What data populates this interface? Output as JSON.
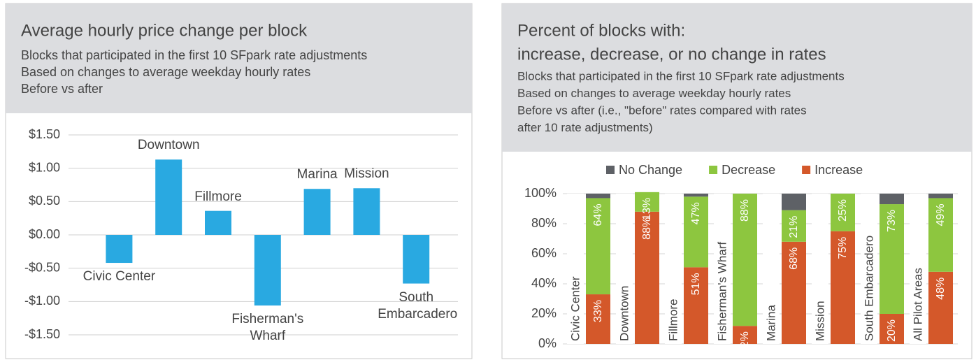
{
  "chart_data": [
    {
      "type": "bar",
      "title": "Average hourly price change per block",
      "subtitle": [
        "Blocks that participated in the first 10 SFpark rate adjustments",
        "Based on changes to average weekday hourly rates",
        "Before vs after"
      ],
      "categories": [
        "Civic Center",
        "Downtown",
        "Fillmore",
        "Fisherman's Wharf",
        "Marina",
        "Mission",
        "South Embarcadero"
      ],
      "values": [
        -0.42,
        1.13,
        0.36,
        -1.06,
        0.69,
        0.7,
        -0.73
      ],
      "color": "#29a9e1",
      "ylim": [
        -1.5,
        1.5
      ],
      "yticks": [
        {
          "value": -1.5,
          "label": "-$1.50"
        },
        {
          "value": -1.0,
          "label": "-$1.00"
        },
        {
          "value": -0.5,
          "label": "-$0.50"
        },
        {
          "value": 0,
          "label": "$0.00"
        },
        {
          "value": 0.5,
          "label": "$0.50"
        },
        {
          "value": 1.0,
          "label": "$1.00"
        },
        {
          "value": 1.5,
          "label": "$1.50"
        }
      ],
      "grid": true
    },
    {
      "type": "stacked_bar",
      "title": [
        "Percent of blocks with:",
        "increase, decrease, or no change in rates"
      ],
      "subtitle": [
        "Blocks that participated in the first 10 SFpark rate adjustments",
        "Based on changes to average weekday hourly rates",
        "Before vs after (i.e., \"before\" rates compared with rates",
        "after 10 rate adjustments)"
      ],
      "categories": [
        "Civic Center",
        "Downtown",
        "Fillmore",
        "Fisherman's Wharf",
        "Marina",
        "Mission",
        "South Embarcadero",
        "All Pilot Areas"
      ],
      "series": [
        {
          "name": "No Change",
          "color": "#5e6166",
          "values": [
            3,
            0,
            2,
            0,
            11,
            0,
            7,
            3
          ]
        },
        {
          "name": "Decrease",
          "color": "#8dc63f",
          "values": [
            64,
            13,
            47,
            88,
            21,
            25,
            73,
            49
          ],
          "value_labels": [
            "64%",
            "13%",
            "47%",
            "88%",
            "21%",
            "25%",
            "73%",
            "49%"
          ]
        },
        {
          "name": "Increase",
          "color": "#d4582a",
          "values": [
            33,
            88,
            51,
            12,
            68,
            75,
            20,
            48
          ],
          "value_labels": [
            "33%",
            "88%",
            "51%",
            "12%",
            "68%",
            "75%",
            "20%",
            "48%"
          ]
        }
      ],
      "ylim": [
        0,
        100
      ],
      "yticks": [
        {
          "value": 0,
          "label": "0%"
        },
        {
          "value": 20,
          "label": "20%"
        },
        {
          "value": 40,
          "label": "40%"
        },
        {
          "value": 60,
          "label": "60%"
        },
        {
          "value": 80,
          "label": "80%"
        },
        {
          "value": 100,
          "label": "100%"
        }
      ],
      "legend": "top",
      "grid": true
    }
  ]
}
